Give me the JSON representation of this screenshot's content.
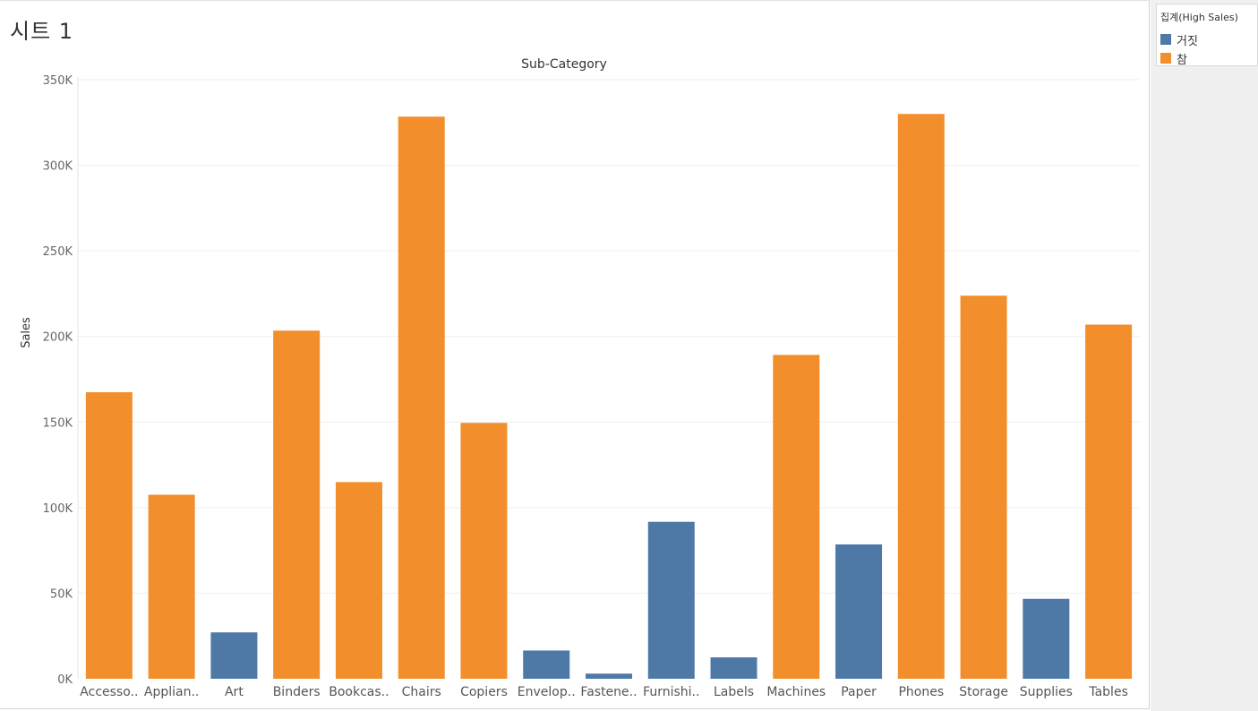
{
  "sheet": {
    "title": "시트 1"
  },
  "legend": {
    "title": "집계(High Sales)",
    "items": [
      {
        "label": "거짓",
        "color": "#4e79a7"
      },
      {
        "label": "참",
        "color": "#f28e2b"
      }
    ]
  },
  "chart_data": {
    "type": "bar",
    "title": "Sub-Category",
    "xlabel": "",
    "ylabel": "Sales",
    "ylim": [
      0,
      350000
    ],
    "yticks": [
      0,
      50000,
      100000,
      150000,
      200000,
      250000,
      300000,
      350000
    ],
    "ytick_labels": [
      "0K",
      "50K",
      "100K",
      "150K",
      "200K",
      "250K",
      "300K",
      "350K"
    ],
    "grid": true,
    "legend_placement": "right",
    "categories": [
      "Accesso..",
      "Applian..",
      "Art",
      "Binders",
      "Bookcas..",
      "Chairs",
      "Copiers",
      "Envelop..",
      "Fastene..",
      "Furnishi..",
      "Labels",
      "Machines",
      "Paper",
      "Phones",
      "Storage",
      "Supplies",
      "Tables"
    ],
    "values": [
      167400,
      107500,
      27100,
      203400,
      114900,
      328400,
      149500,
      16500,
      3000,
      91700,
      12500,
      189200,
      78500,
      330000,
      223800,
      46700,
      206900
    ],
    "high_sales": [
      "참",
      "참",
      "거짓",
      "참",
      "참",
      "참",
      "참",
      "거짓",
      "거짓",
      "거짓",
      "거짓",
      "참",
      "거짓",
      "참",
      "참",
      "거짓",
      "참"
    ],
    "colors": {
      "거짓": "#4e79a7",
      "참": "#f28e2b"
    }
  }
}
